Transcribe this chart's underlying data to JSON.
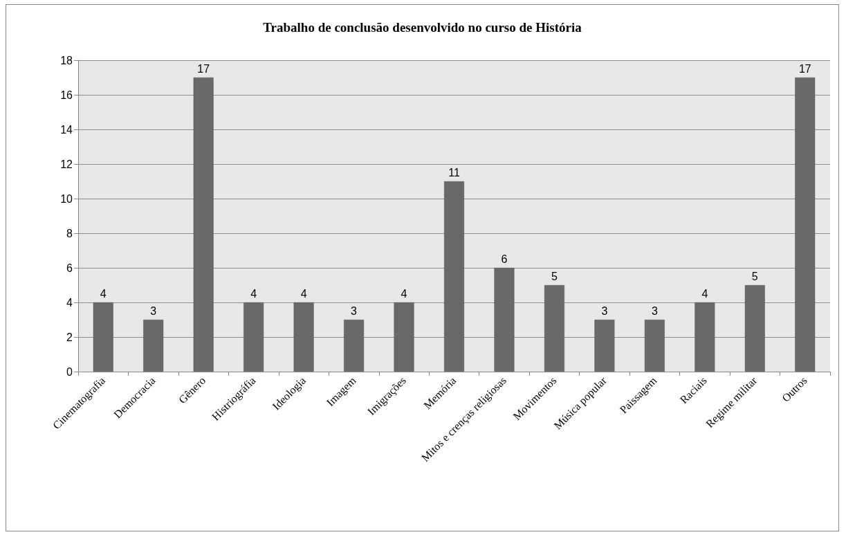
{
  "chart_data": {
    "type": "bar",
    "title": "Trabalho de conclusão desenvolvido no curso de História",
    "categories": [
      "Cinematografia",
      "Democracia",
      "Gênero",
      "Histriográfia",
      "Ideologia",
      "Imagem",
      "Imigrações",
      "Memória",
      "Mitos e crenças religiosas",
      "Movimentos",
      "Música popular",
      "Paissagem",
      "Raciais",
      "Regime militar",
      "Outros"
    ],
    "values": [
      4,
      3,
      17,
      4,
      4,
      3,
      4,
      11,
      6,
      5,
      3,
      3,
      4,
      5,
      17
    ],
    "color": "#696969",
    "ylim": [
      0,
      18
    ],
    "yticks": [
      0,
      2,
      4,
      6,
      8,
      10,
      12,
      14,
      16,
      18
    ],
    "grid": "y",
    "data_labels": true
  }
}
